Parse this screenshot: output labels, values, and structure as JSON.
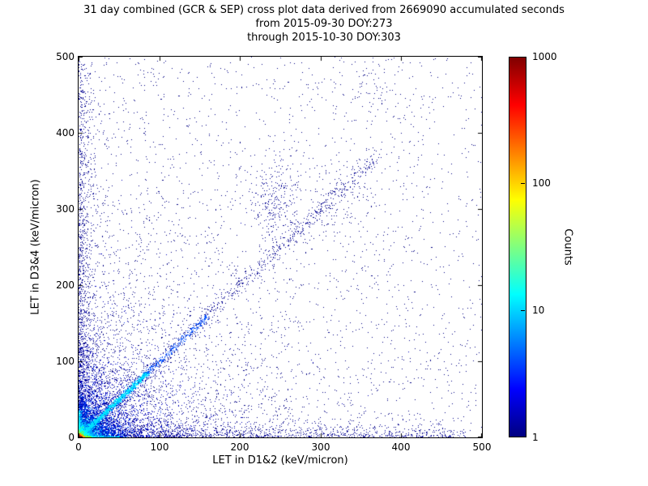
{
  "title": {
    "line1": "31 day combined (GCR & SEP) cross plot data derived from 2669090 accumulated seconds",
    "line2": "from 2015-09-30 DOY:273",
    "line3": "through 2015-10-30 DOY:303"
  },
  "chart_data": {
    "type": "scatter",
    "title": "31 day combined (GCR & SEP) cross plot data derived from 2669090 accumulated seconds from 2015-09-30 DOY:273 through 2015-10-30 DOY:303",
    "xlabel": "LET in D1&2 (keV/micron)",
    "ylabel": "LET in D3&4 (keV/micron)",
    "xlim": [
      0,
      500
    ],
    "ylim": [
      0,
      500
    ],
    "xticks": [
      "0",
      "100",
      "200",
      "300",
      "400",
      "500"
    ],
    "yticks": [
      "0",
      "100",
      "200",
      "300",
      "400",
      "500"
    ],
    "grid": false,
    "legend": false,
    "accumulated_seconds": 2669090,
    "colorbar": {
      "label": "Counts",
      "scale": "log",
      "ticks": [
        "1000",
        "100",
        "10",
        "1"
      ],
      "tick_values": [
        1000,
        100,
        10,
        1
      ],
      "range": [
        1,
        1000
      ],
      "colormap": "jet",
      "low_color": "#000080",
      "high_color": "#800000"
    },
    "description": "Density-colored scatter (2D histogram, jet colormap, log counts 1-1000) of coincident LET in detectors D1&2 vs D3&4. Very dense hot spot at the origin (counts near 1000), a correlated band along y=x extending to ~370 keV/micron (cyan up to ~85), enhanced density along both axes, a mild cluster near (245,308), and sparse isolated single-count events (dark blue) over the full 0-500 range.",
    "point_clusters": [
      {
        "kind": "uniform",
        "n": 1600,
        "color": "#000080",
        "size": 1
      },
      {
        "kind": "corner",
        "n": 2200,
        "sx": 150,
        "sy": 150,
        "color": "#000080",
        "size": 1
      },
      {
        "kind": "bandx",
        "n": 1400,
        "xmax": 480,
        "p": 1.8,
        "sy": 7,
        "color": "#000090",
        "size": 1
      },
      {
        "kind": "bandy",
        "n": 1400,
        "ymax": 495,
        "p": 1.8,
        "sx": 7,
        "color": "#000090",
        "size": 1
      },
      {
        "kind": "blob",
        "n": 120,
        "cx": 330,
        "cy": 300,
        "sx": 25,
        "sy": 35,
        "color": "#000080",
        "size": 1
      },
      {
        "kind": "blob",
        "n": 80,
        "cx": 360,
        "cy": 450,
        "sx": 35,
        "sy": 28,
        "color": "#000080",
        "size": 1
      },
      {
        "kind": "blob",
        "n": 260,
        "cx": 245,
        "cy": 308,
        "sx": 16,
        "sy": 28,
        "color": "#000090",
        "size": 1
      },
      {
        "kind": "corner",
        "n": 2600,
        "sx": 45,
        "sy": 45,
        "color": "#0000b8",
        "size": 1
      },
      {
        "kind": "corner",
        "n": 2200,
        "sx": 18,
        "sy": 18,
        "color": "#0030e8",
        "size": 1
      },
      {
        "kind": "diag",
        "n": 800,
        "tmax": 370,
        "p": 1.1,
        "s": 5,
        "color": "#000090",
        "size": 1
      },
      {
        "kind": "diag",
        "n": 900,
        "tmax": 160,
        "p": 1.4,
        "s": 2.2,
        "color": "#0050ff",
        "size": 1
      },
      {
        "kind": "corner",
        "n": 1800,
        "sx": 8,
        "sy": 8,
        "color": "#00a0ff",
        "size": 1
      },
      {
        "kind": "diag",
        "n": 1400,
        "tmax": 85,
        "p": 1.6,
        "s": 1.6,
        "color": "#00e0ff",
        "size": 1
      },
      {
        "kind": "bandx",
        "n": 400,
        "xmax": 50,
        "p": 1.3,
        "sy": 0.7,
        "color": "#00e0ff",
        "size": 1
      },
      {
        "kind": "bandy",
        "n": 250,
        "ymax": 35,
        "p": 1.3,
        "sx": 0.8,
        "color": "#00e0ff",
        "size": 1
      },
      {
        "kind": "corner",
        "n": 1200,
        "sx": 3.5,
        "sy": 3.5,
        "color": "#00ffff",
        "size": 1
      },
      {
        "kind": "bandx",
        "n": 150,
        "xmax": 15,
        "p": 1.3,
        "sy": 0.5,
        "color": "#80ff00",
        "size": 1
      },
      {
        "kind": "corner",
        "n": 600,
        "sx": 1.8,
        "sy": 1.8,
        "color": "#80ff20",
        "size": 1
      },
      {
        "kind": "corner",
        "n": 350,
        "sx": 1.0,
        "sy": 1.0,
        "color": "#ffa000",
        "size": 2
      },
      {
        "kind": "corner",
        "n": 200,
        "sx": 0.6,
        "sy": 0.6,
        "color": "#ff2000",
        "size": 2
      }
    ]
  }
}
